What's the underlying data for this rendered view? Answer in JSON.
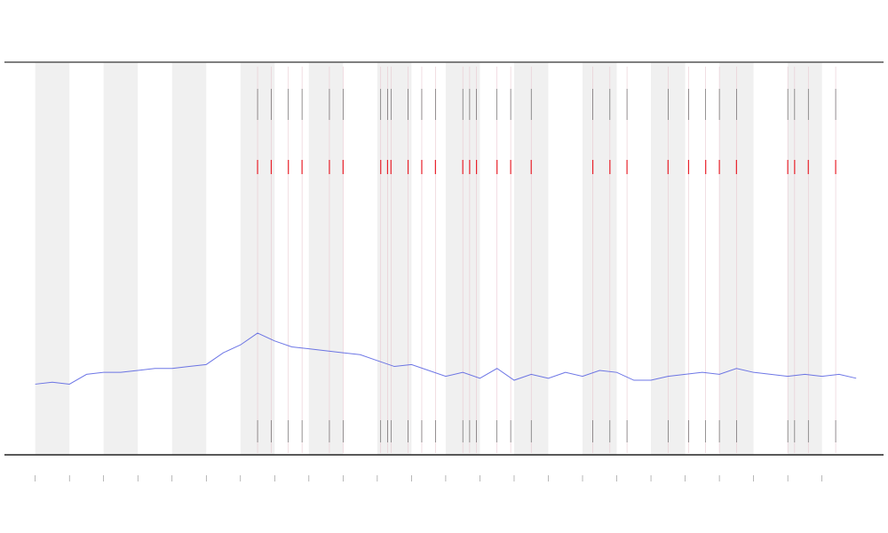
{
  "chart_data": {
    "type": "line",
    "xlim": [
      -0.9,
      24.8
    ],
    "ylim": [
      0,
      100
    ],
    "xticks": [
      0,
      1,
      2,
      3,
      4,
      5,
      6,
      7,
      8,
      9,
      10,
      11,
      12,
      13,
      14,
      15,
      16,
      17,
      18,
      19,
      20,
      21,
      22,
      23
    ],
    "bands": [
      [
        0,
        1
      ],
      [
        2,
        3
      ],
      [
        4,
        5
      ],
      [
        6,
        7
      ],
      [
        8,
        9
      ],
      [
        10,
        11
      ],
      [
        12,
        13
      ],
      [
        14,
        15
      ],
      [
        16,
        17
      ],
      [
        18,
        19
      ],
      [
        20,
        21
      ],
      [
        22,
        23
      ]
    ],
    "band_color": "#f0f0f0",
    "events": [
      6.5,
      6.9,
      7.4,
      7.8,
      8.6,
      9.0,
      10.1,
      10.3,
      10.4,
      10.9,
      11.3,
      11.7,
      12.5,
      12.7,
      12.9,
      13.5,
      13.9,
      14.5,
      16.3,
      16.8,
      17.3,
      18.5,
      19.1,
      19.6,
      20.0,
      20.5,
      22.0,
      22.2,
      22.6,
      23.4
    ],
    "event_color": "#e8202a",
    "series": [
      {
        "color": "#4a55e0",
        "x": [
          0,
          0.5,
          1,
          1.5,
          2,
          2.5,
          3,
          3.5,
          4,
          4.5,
          5,
          5.5,
          6,
          6.5,
          7,
          7.5,
          8,
          8.5,
          9,
          9.5,
          10,
          10.5,
          11,
          11.5,
          12,
          12.5,
          13,
          13.5,
          14,
          14.5,
          15,
          15.5,
          16,
          16.5,
          17,
          17.5,
          18,
          18.5,
          19,
          19.5,
          20,
          20.5,
          21,
          21.5,
          22,
          22.5,
          23,
          23.5,
          24
        ],
        "values": [
          18,
          18.5,
          18,
          20.5,
          21,
          21,
          21.5,
          22,
          22,
          22.5,
          23,
          26,
          28,
          31,
          29,
          27.5,
          27,
          26.5,
          26,
          25.5,
          24,
          22.5,
          23,
          21.5,
          20,
          21,
          19.5,
          22,
          19,
          20.5,
          19.5,
          21,
          20,
          21.5,
          21,
          19,
          19,
          20,
          20.5,
          21,
          20.5,
          22,
          21,
          20.5,
          20,
          20.5,
          20,
          20.5,
          19.5
        ]
      }
    ]
  }
}
